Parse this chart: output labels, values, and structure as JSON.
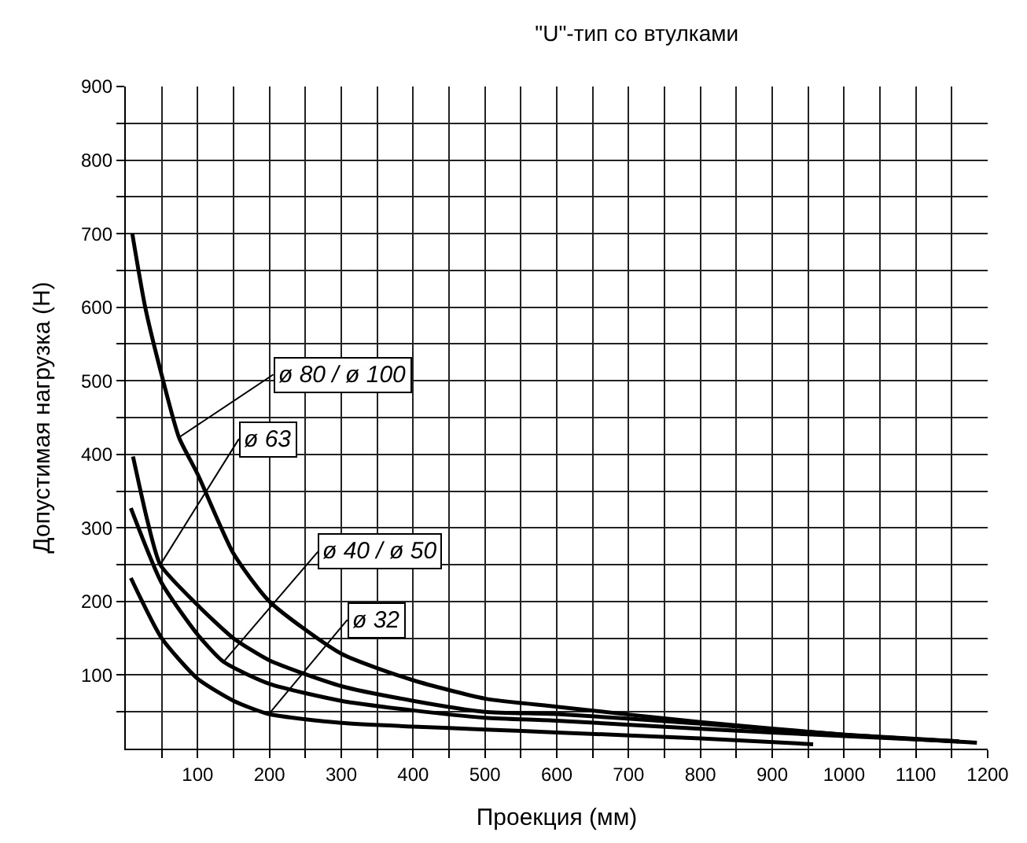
{
  "chart_data": {
    "type": "line",
    "title": "\"U\"-тип со втулками",
    "xlabel": "Проекция (мм)",
    "ylabel": "Допустимая нагрузка (Н)",
    "xlim": [
      0,
      1200
    ],
    "ylim": [
      0,
      900
    ],
    "xticks": [
      {
        "value": 50,
        "label": null
      },
      100,
      {
        "value": 150,
        "label": null
      },
      200,
      {
        "value": 250,
        "label": null
      },
      300,
      {
        "value": 350,
        "label": null
      },
      400,
      {
        "value": 450,
        "label": null
      },
      500,
      {
        "value": 550,
        "label": null
      },
      600,
      {
        "value": 650,
        "label": null
      },
      700,
      {
        "value": 750,
        "label": null
      },
      800,
      {
        "value": 850,
        "label": null
      },
      900,
      {
        "value": 950,
        "label": null
      },
      1000,
      {
        "value": 1050,
        "label": null
      },
      1100,
      {
        "value": 1150,
        "label": null
      },
      1200
    ],
    "yticks": [
      {
        "value": 50,
        "label": null
      },
      100,
      {
        "value": 150,
        "label": null
      },
      200,
      {
        "value": 250,
        "label": null
      },
      300,
      {
        "value": 350,
        "label": null
      },
      400,
      {
        "value": 450,
        "label": null
      },
      500,
      {
        "value": 550,
        "label": null
      },
      600,
      {
        "value": 650,
        "label": null
      },
      700,
      {
        "value": 750,
        "label": null
      },
      800,
      {
        "value": 850,
        "label": null
      },
      900
    ],
    "grid": true,
    "marker": "none",
    "line_style": "solid",
    "series": [
      {
        "color": "#000000",
        "x": [
          9,
          27,
          52,
          74,
          100,
          150,
          200,
          300,
          400,
          500,
          600,
          800,
          1000,
          1185
        ],
        "values": [
          700,
          600,
          500,
          423,
          373,
          265,
          200,
          129,
          93,
          68,
          57,
          36,
          19,
          8
        ]
      },
      {
        "color": "#000000",
        "x": [
          10,
          30,
          48,
          100,
          150,
          200,
          300,
          400,
          500,
          600,
          800,
          1000,
          1160
        ],
        "values": [
          397,
          310,
          250,
          195,
          150,
          120,
          85,
          65,
          50,
          47,
          34,
          19,
          10
        ]
      },
      {
        "color": "#000000",
        "x": [
          7,
          50,
          100,
          136,
          200,
          300,
          400,
          500,
          600,
          800,
          1000,
          1160
        ],
        "values": [
          327,
          225,
          155,
          118,
          88,
          65,
          52,
          42,
          38,
          27,
          17,
          10
        ]
      },
      {
        "color": "#000000",
        "x": [
          7,
          50,
          100,
          150,
          199,
          300,
          400,
          500,
          600,
          800,
          957
        ],
        "values": [
          232,
          150,
          95,
          65,
          47,
          35,
          30,
          26,
          22,
          14,
          6
        ]
      }
    ],
    "annotations": [
      {
        "text": "ø 80 / ø 100",
        "x": 74,
        "y": 423
      },
      {
        "text": "ø 63",
        "x": 48,
        "y": 250
      },
      {
        "text": "ø 40 / ø 50",
        "x": 136,
        "y": 118
      },
      {
        "text": "ø 32",
        "x": 199,
        "y": 47
      }
    ]
  }
}
